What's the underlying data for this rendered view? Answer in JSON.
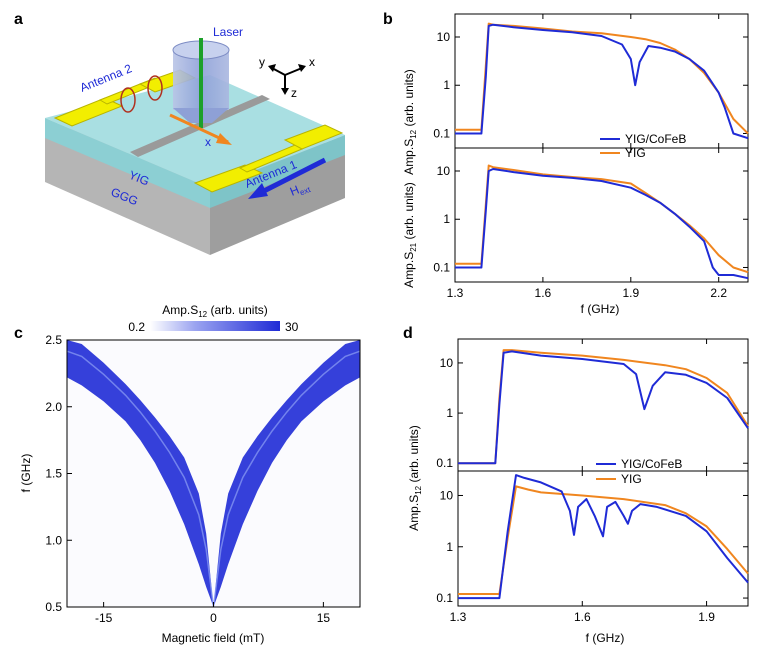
{
  "colors": {
    "yig_cofeb": "#1f2bd6",
    "yig": "#f0861f",
    "film": "#9fd8dc",
    "antenna": "#f2ee00",
    "substrate": "#c4c4c4"
  },
  "panels": {
    "a": {
      "letter": "a",
      "labels": {
        "laser": "Laser",
        "antenna2": "Antenna 2",
        "antenna1": "Antenna 1",
        "yig": "YIG",
        "ggg": "GGG",
        "x": "x",
        "hext": "H",
        "hext_sub": "ext"
      },
      "axes": {
        "y": "y",
        "x": "x",
        "z": "z"
      }
    },
    "b": {
      "letter": "b",
      "ylabel_top_main": "Amp.S",
      "ylabel_top_sub": "12",
      "ylabel_top_tail": " (arb. units)",
      "ylabel_bottom_main": "Amp.S",
      "ylabel_bottom_sub": "21",
      "ylabel_bottom_tail": " (arb. units)",
      "xlabel": "f (GHz)",
      "xticks": [
        "1.3",
        "1.6",
        "1.9",
        "2.2"
      ],
      "yticks": [
        "0.1",
        "1",
        "10"
      ],
      "legend": [
        "YIG/CoFeB",
        "YIG"
      ]
    },
    "c": {
      "letter": "c",
      "colorbar_title_main": "Amp.S",
      "colorbar_title_sub": "12",
      "colorbar_title_tail": " (arb. units)",
      "colorbar_min": "0.2",
      "colorbar_max": "30",
      "ylabel": "f (GHz)",
      "xlabel": "Magnetic field (mT)",
      "yticks": [
        "0.5",
        "1.0",
        "1.5",
        "2.0",
        "2.5"
      ],
      "xticks": [
        "-15",
        "0",
        "15"
      ]
    },
    "d": {
      "letter": "d",
      "ylabel_main": "Amp.S",
      "ylabel_sub": "12",
      "ylabel_tail": " (arb. units)",
      "xlabel": "f (GHz)",
      "xticks": [
        "1.3",
        "1.6",
        "1.9"
      ],
      "yticks": [
        "0.1",
        "1",
        "10"
      ],
      "legend": [
        "YIG/CoFeB",
        "YIG"
      ]
    }
  },
  "chart_data": [
    {
      "id": "b-top",
      "type": "line",
      "xscale": "linear",
      "yscale": "log",
      "xlim": [
        1.3,
        2.3
      ],
      "ylim": [
        0.05,
        30
      ],
      "series": [
        {
          "name": "YIG/CoFeB",
          "x": [
            1.3,
            1.39,
            1.405,
            1.415,
            1.43,
            1.5,
            1.6,
            1.7,
            1.8,
            1.87,
            1.9,
            1.915,
            1.93,
            1.96,
            2.0,
            2.05,
            2.1,
            2.15,
            2.2,
            2.22,
            2.25,
            2.3
          ],
          "y": [
            0.1,
            0.1,
            1.5,
            17,
            18,
            16,
            14,
            12.5,
            10.5,
            7,
            3.5,
            1.0,
            3,
            6.5,
            6,
            5,
            3.5,
            2,
            0.7,
            0.35,
            0.1,
            0.08
          ]
        },
        {
          "name": "YIG",
          "x": [
            1.3,
            1.39,
            1.405,
            1.415,
            1.43,
            1.5,
            1.6,
            1.7,
            1.8,
            1.9,
            1.95,
            2.0,
            2.05,
            2.1,
            2.15,
            2.2,
            2.25,
            2.3
          ],
          "y": [
            0.12,
            0.12,
            2.5,
            19,
            18,
            17,
            15,
            13,
            12,
            10,
            9,
            7.5,
            5.5,
            3.5,
            1.8,
            0.7,
            0.2,
            0.1
          ]
        }
      ]
    },
    {
      "id": "b-bottom",
      "type": "line",
      "xscale": "linear",
      "yscale": "log",
      "xlim": [
        1.3,
        2.3
      ],
      "ylim": [
        0.05,
        30
      ],
      "series": [
        {
          "name": "YIG/CoFeB",
          "x": [
            1.3,
            1.39,
            1.405,
            1.415,
            1.43,
            1.5,
            1.6,
            1.7,
            1.8,
            1.9,
            1.95,
            2.0,
            2.05,
            2.1,
            2.15,
            2.18,
            2.2,
            2.25,
            2.3
          ],
          "y": [
            0.1,
            0.1,
            1.5,
            10,
            11,
            9.5,
            8,
            7.2,
            6.2,
            4.5,
            3.2,
            2.2,
            1.3,
            0.7,
            0.35,
            0.1,
            0.07,
            0.07,
            0.06
          ]
        },
        {
          "name": "YIG",
          "x": [
            1.3,
            1.39,
            1.405,
            1.415,
            1.43,
            1.5,
            1.6,
            1.7,
            1.8,
            1.9,
            1.95,
            2.0,
            2.05,
            2.1,
            2.15,
            2.2,
            2.25,
            2.3
          ],
          "y": [
            0.12,
            0.12,
            2,
            13,
            12,
            10.5,
            8.5,
            7.5,
            6.8,
            5.5,
            3.5,
            2.2,
            1.3,
            0.75,
            0.4,
            0.18,
            0.1,
            0.08
          ]
        }
      ]
    },
    {
      "id": "c",
      "type": "heatmap",
      "xlabel": "Magnetic field (mT)",
      "ylabel": "f (GHz)",
      "xlim": [
        -20,
        20
      ],
      "ylim": [
        0.5,
        2.5
      ],
      "colorbar": {
        "min": 0.2,
        "max": 30,
        "colors": [
          "#ffffff",
          "#1f2bd6"
        ]
      },
      "branches": {
        "field": [
          0,
          1,
          2,
          4,
          6,
          8,
          10,
          12,
          15,
          18,
          20
        ],
        "f_lower": [
          0.5,
          0.65,
          0.82,
          1.12,
          1.37,
          1.58,
          1.75,
          1.89,
          2.04,
          2.16,
          2.22
        ],
        "f_upper": [
          0.5,
          1.05,
          1.35,
          1.62,
          1.78,
          1.92,
          2.05,
          2.17,
          2.33,
          2.47,
          2.5
        ]
      }
    },
    {
      "id": "d-top",
      "type": "line",
      "xscale": "linear",
      "yscale": "log",
      "xlim": [
        1.3,
        2.0
      ],
      "ylim": [
        0.07,
        30
      ],
      "series": [
        {
          "name": "YIG/CoFeB",
          "x": [
            1.3,
            1.39,
            1.4,
            1.41,
            1.43,
            1.5,
            1.6,
            1.7,
            1.73,
            1.75,
            1.77,
            1.8,
            1.85,
            1.9,
            1.95,
            2.0
          ],
          "y": [
            0.1,
            0.1,
            1.5,
            16,
            17,
            14,
            12,
            9.5,
            6,
            1.2,
            3.5,
            6.5,
            5.8,
            4,
            2,
            0.5
          ]
        },
        {
          "name": "YIG",
          "x": [
            1.3,
            1.39,
            1.4,
            1.41,
            1.43,
            1.5,
            1.6,
            1.7,
            1.8,
            1.85,
            1.9,
            1.95,
            2.0
          ],
          "y": [
            0.1,
            0.1,
            2,
            18,
            18,
            16,
            14,
            11.5,
            9,
            7.5,
            5,
            2.5,
            0.55
          ]
        }
      ]
    },
    {
      "id": "d-bottom",
      "type": "line",
      "xscale": "linear",
      "yscale": "log",
      "xlim": [
        1.3,
        2.0
      ],
      "ylim": [
        0.07,
        30
      ],
      "series": [
        {
          "name": "YIG/CoFeB",
          "x": [
            1.3,
            1.4,
            1.42,
            1.44,
            1.46,
            1.5,
            1.55,
            1.57,
            1.58,
            1.59,
            1.61,
            1.63,
            1.65,
            1.66,
            1.68,
            1.7,
            1.71,
            1.72,
            1.74,
            1.78,
            1.85,
            1.9,
            1.95,
            2.0
          ],
          "y": [
            0.1,
            0.1,
            2,
            25,
            22,
            18,
            12,
            5,
            1.7,
            6,
            8.5,
            4,
            1.6,
            6,
            7.5,
            4,
            2.8,
            5,
            6.8,
            6,
            4,
            2,
            0.6,
            0.2
          ]
        },
        {
          "name": "YIG",
          "x": [
            1.3,
            1.4,
            1.42,
            1.44,
            1.47,
            1.5,
            1.6,
            1.7,
            1.8,
            1.85,
            1.9,
            1.95,
            2.0
          ],
          "y": [
            0.12,
            0.12,
            1.5,
            15,
            13,
            11.5,
            10,
            8.5,
            6.5,
            4.5,
            2.5,
            0.9,
            0.3
          ]
        }
      ]
    }
  ]
}
